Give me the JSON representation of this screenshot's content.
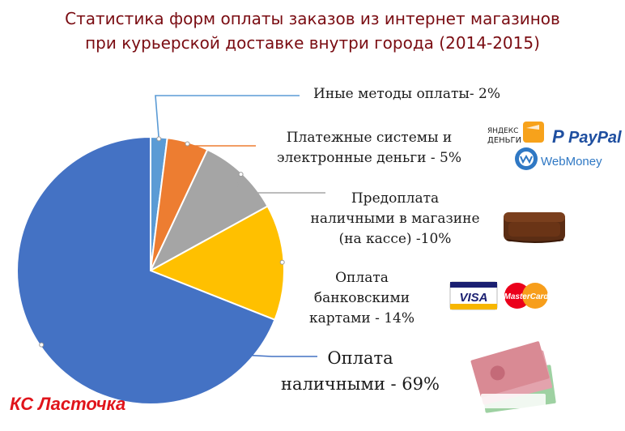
{
  "title_lines": [
    "Статистика форм оплаты заказов из интернет магазинов",
    "при курьерской доставке внутри города (2014-2015)"
  ],
  "brand_logo": "КС Ласточка",
  "chart_data": {
    "type": "pie",
    "title": "Статистика форм оплаты заказов из интернет магазинов при курьерской доставке внутри города (2014-2015)",
    "slices": [
      {
        "label_lines": [
          "Иные методы оплаты- 2%"
        ],
        "value": 2,
        "color": "#5b9bd5"
      },
      {
        "label_lines": [
          "Платежные системы и",
          "электронные деньги - 5%"
        ],
        "value": 5,
        "color": "#ed7d31"
      },
      {
        "label_lines": [
          "Предоплата",
          "наличными в магазине",
          "(на кассе) -10%"
        ],
        "value": 10,
        "color": "#a5a5a5"
      },
      {
        "label_lines": [
          "Оплата",
          "банковскими",
          "картами - 14%"
        ],
        "value": 14,
        "color": "#ffc000"
      },
      {
        "label_lines": [
          "Оплата",
          "наличными - 69%"
        ],
        "value": 69,
        "color": "#4472c4"
      }
    ],
    "legend": "none"
  },
  "icons": {
    "yandex_money": {
      "text_line1": "ЯНДЕКС",
      "text_line2": "ДЕНЬГИ",
      "color": "#f7a21b"
    },
    "paypal": {
      "text": "PayPal",
      "color": "#1f4fa0"
    },
    "webmoney": {
      "text": "WebMoney",
      "color": "#2f78c4"
    },
    "visa": {
      "text": "VISA",
      "color": "#1a1f71"
    },
    "mastercard": {
      "text": "MasterCard"
    }
  }
}
